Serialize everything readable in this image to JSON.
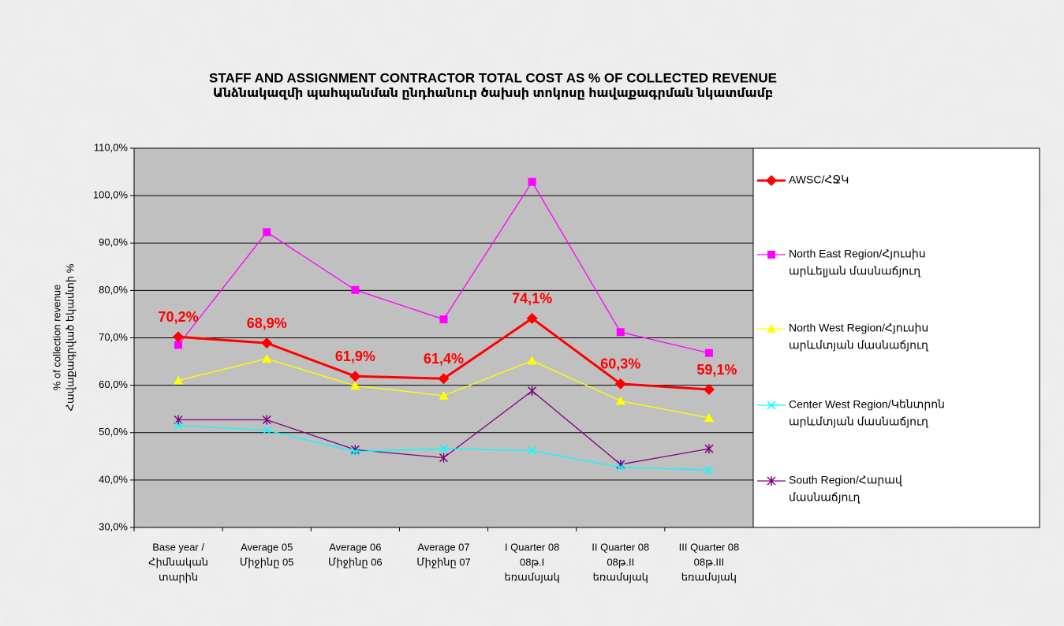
{
  "chart_data": {
    "type": "line",
    "title": "STAFF AND ASSIGNMENT CONTRACTOR TOTAL COST AS % OF COLLECTED REVENUE",
    "subtitle": "Անձնակազմի պահպանման ընդհանուր ծախսի տոկոսը հավաքագրման  նկատմամբ",
    "y_label": [
      "% of collection revenue",
      "Հավաքագրված եկամտի %"
    ],
    "categories": [
      [
        "Base year /",
        "Հիմնական",
        "տարին"
      ],
      [
        "Average 05",
        "Միջինը 05"
      ],
      [
        "Average 06",
        "Միջինը 06"
      ],
      [
        "Average 07",
        "Միջինը 07"
      ],
      [
        "I Quarter 08",
        "08թ.I",
        "եռամսյակ"
      ],
      [
        "II Quarter 08",
        "08թ.II",
        "եռամսյակ"
      ],
      [
        "III Quarter 08",
        "08թ.III",
        "եռամսյակ"
      ]
    ],
    "ylim": [
      30,
      110
    ],
    "yticks": [
      {
        "value": 30,
        "label": "30,0%"
      },
      {
        "value": 40,
        "label": "40,0%"
      },
      {
        "value": 50,
        "label": "50,0%"
      },
      {
        "value": 60,
        "label": "60,0%"
      },
      {
        "value": 70,
        "label": "70,0%"
      },
      {
        "value": 80,
        "label": "80,0%"
      },
      {
        "value": 90,
        "label": "90,0%"
      },
      {
        "value": 100,
        "label": "100,0%"
      },
      {
        "value": 110,
        "label": "110,0%"
      }
    ],
    "grid": true,
    "legend": "right",
    "series": [
      {
        "name": [
          "AWSC/ՀՋԿ"
        ],
        "color": "#ff0000",
        "marker": "diamond",
        "values": [
          70.2,
          68.9,
          61.9,
          61.4,
          74.1,
          60.3,
          59.1
        ],
        "value_labels": [
          "70,2%",
          "68,9%",
          "61,9%",
          "61,4%",
          "74,1%",
          "60,3%",
          "59,1%"
        ]
      },
      {
        "name": [
          "North East Region/Հյուսիս",
          "արևելյան մասնաճյուղ"
        ],
        "color": "#ff00ff",
        "marker": "square",
        "values": [
          68.5,
          92.3,
          80.1,
          73.9,
          102.9,
          71.2,
          66.8
        ]
      },
      {
        "name": [
          "North West Region/Հյուսիս",
          "արևմտյան մասնաճյուղ"
        ],
        "color": "#ffff00",
        "marker": "triangle",
        "values": [
          61.0,
          65.6,
          59.9,
          57.8,
          65.2,
          56.7,
          53.1
        ]
      },
      {
        "name": [
          "Center West Region/Կենտրոն",
          "արևմտյան մասնաճյուղ"
        ],
        "color": "#00ffff",
        "marker": "x",
        "values": [
          51.5,
          50.5,
          46.0,
          46.6,
          46.2,
          42.7,
          42.1
        ]
      },
      {
        "name": [
          "South Region/Հարավ",
          "մասնաճյուղ"
        ],
        "color": "#800080",
        "marker": "star",
        "values": [
          52.7,
          52.7,
          46.4,
          44.7,
          58.8,
          43.3,
          46.6
        ]
      }
    ]
  }
}
